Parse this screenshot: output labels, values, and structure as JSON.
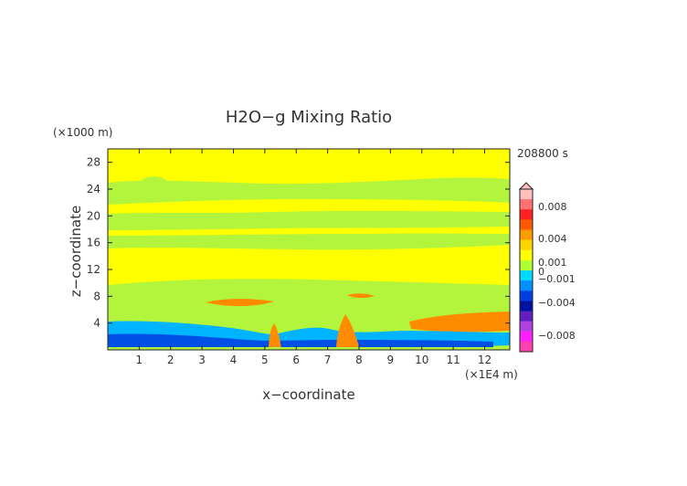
{
  "chart_data": {
    "type": "heatmap",
    "title": "H2O−g Mixing Ratio",
    "xlabel": "x−coordinate",
    "ylabel": "z−coordinate",
    "x_unit": "(×1E4 m)",
    "y_unit": "(×1000 m)",
    "time_label": "208800 s",
    "xlim": [
      0,
      12.8
    ],
    "ylim": [
      0,
      30
    ],
    "x_ticks": [
      "1",
      "2",
      "3",
      "4",
      "5",
      "6",
      "7",
      "8",
      "9",
      "10",
      "11",
      "12"
    ],
    "y_ticks": [
      "4",
      "8",
      "12",
      "16",
      "20",
      "24",
      "28"
    ],
    "colorbar": {
      "labels": [
        "0.008",
        "0.004",
        "0.001",
        "0",
        "−0.001",
        "−0.004",
        "−0.008"
      ],
      "colors": [
        "#ffbfbf",
        "#ff7070",
        "#ff2020",
        "#ff5a00",
        "#ff9b00",
        "#ffd700",
        "#ffff00",
        "#b0ff30",
        "#00d8ff",
        "#0090ff",
        "#0040e0",
        "#0010a0",
        "#6020c0",
        "#b040e0",
        "#ff20ff",
        "#ff40b0"
      ]
    },
    "regions": [
      {
        "label": "0 to 0.001",
        "color": "#ffff00"
      },
      {
        "label": "−0.001 to 0",
        "color": "#b2f53c"
      },
      {
        "label": "−0.004 to −0.001",
        "color": "#00b4ff"
      },
      {
        "label": "≤ −0.004",
        "color": "#0050e6"
      },
      {
        "label": "0.001 to 0.004",
        "color": "#ff8c00"
      }
    ]
  }
}
